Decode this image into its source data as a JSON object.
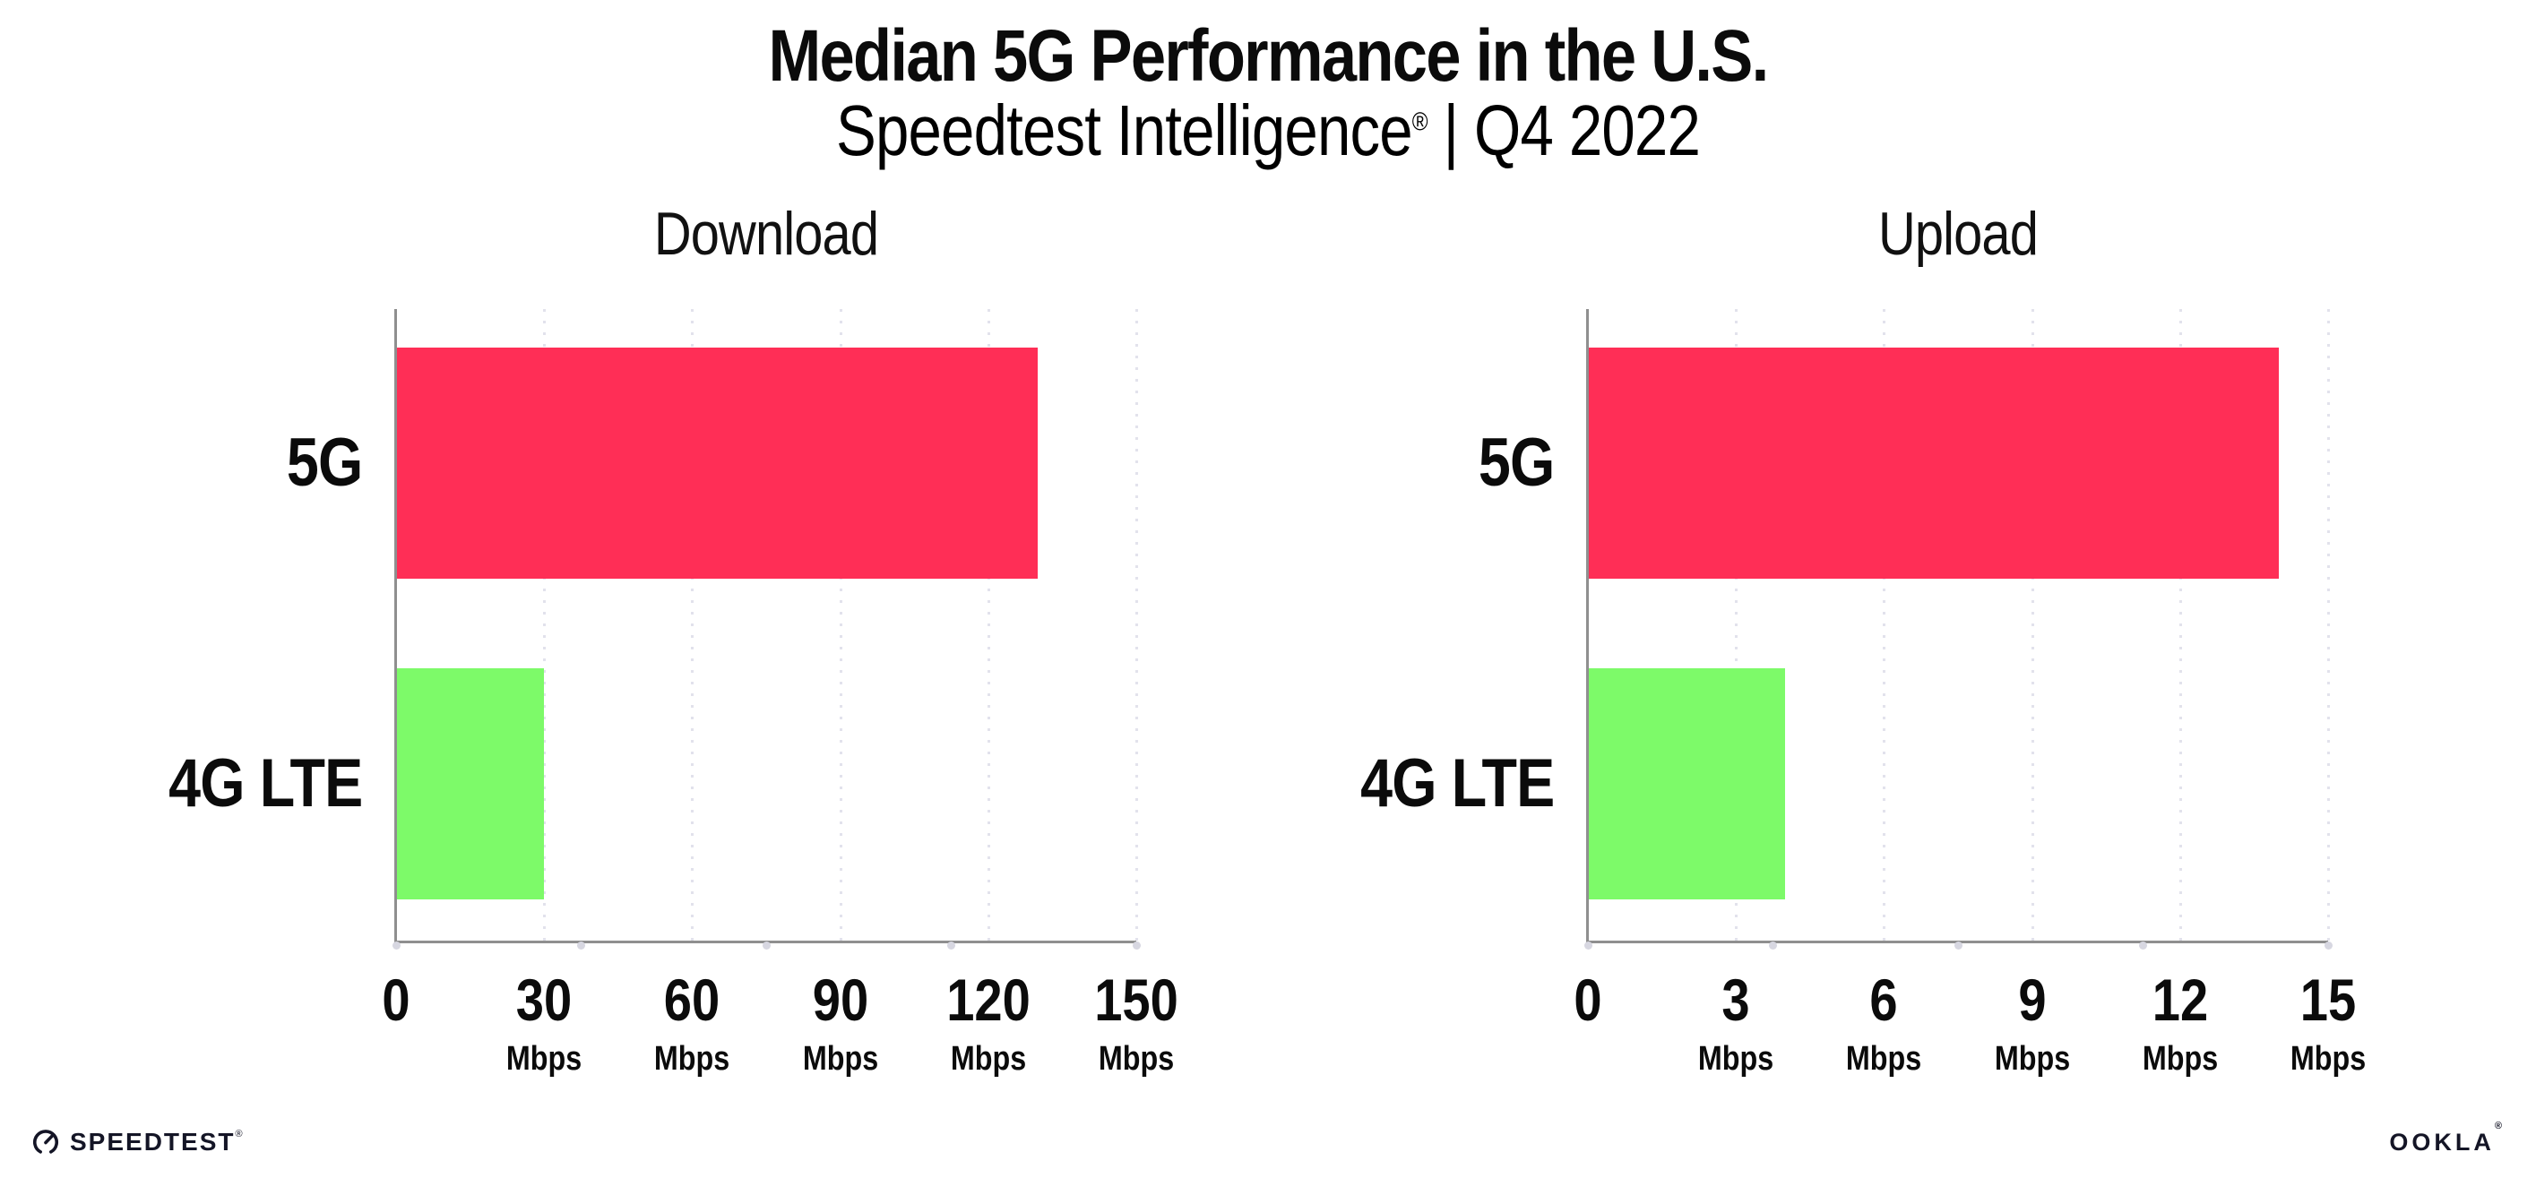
{
  "header": {
    "title": "Median 5G Performance in the U.S.",
    "subtitle_brand": "Speedtest Intelligence",
    "subtitle_reg": "®",
    "subtitle_tail": " | Q4 2022"
  },
  "chart_data": [
    {
      "type": "bar",
      "orientation": "horizontal",
      "title": "Download",
      "categories": [
        "5G",
        "4G LTE"
      ],
      "values": [
        130,
        30
      ],
      "value_unit": "Mbps",
      "xlim": [
        0,
        150
      ],
      "xticks": [
        {
          "label": "0",
          "unit": ""
        },
        {
          "label": "30",
          "unit": "Mbps"
        },
        {
          "label": "60",
          "unit": "Mbps"
        },
        {
          "label": "90",
          "unit": "Mbps"
        },
        {
          "label": "120",
          "unit": "Mbps"
        },
        {
          "label": "150",
          "unit": "Mbps"
        }
      ],
      "bar_colors": [
        "#ff2e56",
        "#7dfa69"
      ],
      "grid": "dotted-vertical",
      "legend": "none"
    },
    {
      "type": "bar",
      "orientation": "horizontal",
      "title": "Upload",
      "categories": [
        "5G",
        "4G LTE"
      ],
      "values": [
        14,
        4
      ],
      "value_unit": "Mbps",
      "xlim": [
        0,
        15
      ],
      "xticks": [
        {
          "label": "0",
          "unit": ""
        },
        {
          "label": "3",
          "unit": "Mbps"
        },
        {
          "label": "6",
          "unit": "Mbps"
        },
        {
          "label": "9",
          "unit": "Mbps"
        },
        {
          "label": "12",
          "unit": "Mbps"
        },
        {
          "label": "15",
          "unit": "Mbps"
        }
      ],
      "bar_colors": [
        "#ff2e56",
        "#7dfa69"
      ],
      "grid": "dotted-vertical",
      "legend": "none"
    }
  ],
  "colors": {
    "bar_5g": "#ff2e56",
    "bar_4g_lte": "#7dfa69",
    "axis_line": "#8f8f8f",
    "grid_dot": "#e2e2ec",
    "axis_tick_dot": "#d7d7e1",
    "text": "#0b0b0b"
  },
  "footer": {
    "speedtest_label": "SPEEDTEST",
    "speedtest_mark": "®",
    "ookla_label": "OOKLA",
    "ookla_mark": "®"
  }
}
